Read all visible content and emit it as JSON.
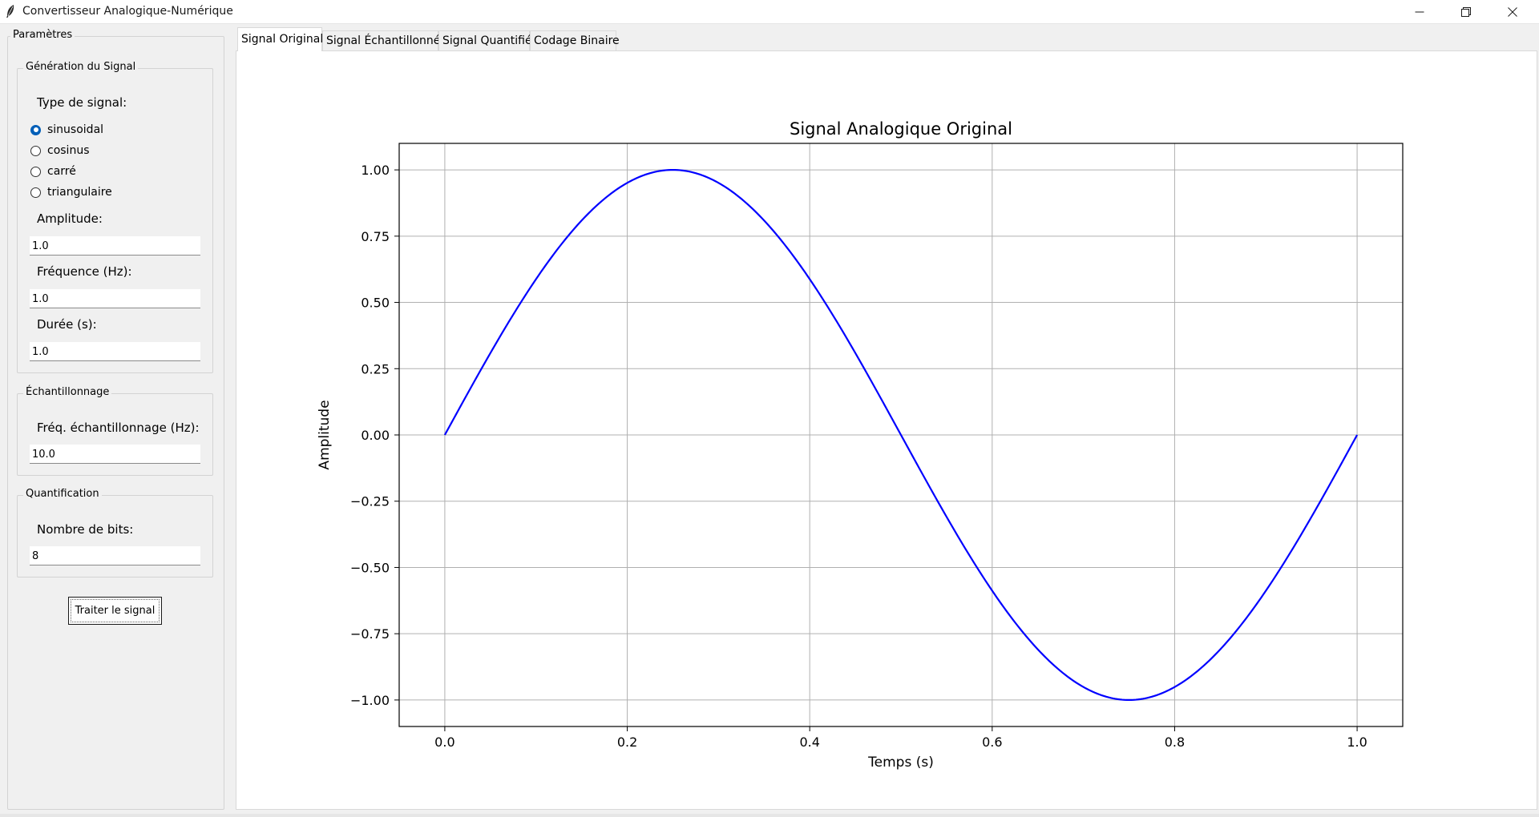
{
  "window": {
    "title": "Convertisseur Analogique-Numérique",
    "controls": [
      "minimize-icon",
      "restore-icon",
      "close-icon"
    ]
  },
  "params": {
    "frame_title": "Paramètres",
    "generation": {
      "title": "Génération du Signal",
      "type_label": "Type de signal:",
      "options": [
        "sinusoidal",
        "cosinus",
        "carré",
        "triangulaire"
      ],
      "selected": "sinusoidal",
      "amplitude_label": "Amplitude:",
      "amplitude_value": "1.0",
      "frequency_label": "Fréquence (Hz):",
      "frequency_value": "1.0",
      "duration_label": "Durée (s):",
      "duration_value": "1.0"
    },
    "sampling": {
      "title": "Échantillonnage",
      "rate_label": "Fréq. échantillonnage (Hz):",
      "rate_value": "10.0"
    },
    "quantization": {
      "title": "Quantification",
      "bits_label": "Nombre de bits:",
      "bits_value": "8"
    },
    "process_button": "Traiter le signal"
  },
  "tabs": [
    {
      "label": "Signal Original",
      "active": true
    },
    {
      "label": "Signal Échantillonné",
      "active": false
    },
    {
      "label": "Signal Quantifié",
      "active": false
    },
    {
      "label": "Codage Binaire",
      "active": false
    }
  ],
  "chart_data": {
    "type": "line",
    "title": "Signal Analogique Original",
    "xlabel": "Temps (s)",
    "ylabel": "Amplitude",
    "xlim": [
      -0.05,
      1.05
    ],
    "ylim": [
      -1.1,
      1.1
    ],
    "xticks": [
      0.0,
      0.2,
      0.4,
      0.6,
      0.8,
      1.0
    ],
    "xtick_labels": [
      "0.0",
      "0.2",
      "0.4",
      "0.6",
      "0.8",
      "1.0"
    ],
    "yticks": [
      -1.0,
      -0.75,
      -0.5,
      -0.25,
      0.0,
      0.25,
      0.5,
      0.75,
      1.0
    ],
    "ytick_labels": [
      "−1.00",
      "−0.75",
      "−0.50",
      "−0.25",
      "0.00",
      "0.25",
      "0.50",
      "0.75",
      "1.00"
    ],
    "grid": true,
    "series": [
      {
        "color": "#0000ff",
        "function": "sin(2*pi*t)",
        "t_range": [
          0,
          1
        ],
        "x": [
          0.0,
          0.025,
          0.05,
          0.075,
          0.1,
          0.125,
          0.15,
          0.175,
          0.2,
          0.225,
          0.25,
          0.275,
          0.3,
          0.325,
          0.35,
          0.375,
          0.4,
          0.425,
          0.45,
          0.475,
          0.5,
          0.525,
          0.55,
          0.575,
          0.6,
          0.625,
          0.65,
          0.675,
          0.7,
          0.725,
          0.75,
          0.775,
          0.8,
          0.825,
          0.85,
          0.875,
          0.9,
          0.925,
          0.95,
          0.975,
          1.0
        ],
        "y": [
          0.0,
          0.156,
          0.309,
          0.454,
          0.588,
          0.707,
          0.809,
          0.891,
          0.951,
          0.988,
          1.0,
          0.988,
          0.951,
          0.891,
          0.809,
          0.707,
          0.588,
          0.454,
          0.309,
          0.156,
          0.0,
          -0.156,
          -0.309,
          -0.454,
          -0.588,
          -0.707,
          -0.809,
          -0.891,
          -0.951,
          -0.988,
          -1.0,
          -0.988,
          -0.951,
          -0.891,
          -0.809,
          -0.707,
          -0.588,
          -0.454,
          -0.309,
          -0.156,
          0.0
        ]
      }
    ]
  }
}
